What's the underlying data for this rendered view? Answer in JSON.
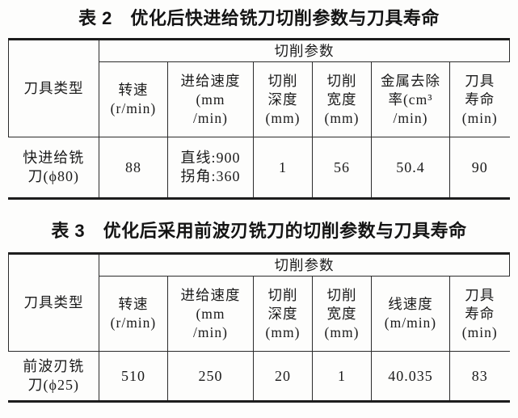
{
  "table2": {
    "title": "表 2　优化后快进给铣刀切削参数与刀具寿命",
    "corner": "刀具类型",
    "group": "切削参数",
    "headers": [
      [
        "转速",
        "(r/min)"
      ],
      [
        "进给速度",
        "(mm",
        "/min)"
      ],
      [
        "切削",
        "深度",
        "(mm)"
      ],
      [
        "切削",
        "宽度",
        "(mm)"
      ],
      [
        "金属去除",
        "率(cm³",
        "/min)"
      ],
      [
        "刀具",
        "寿命",
        "(min)"
      ]
    ],
    "row": {
      "tool": [
        "快进给铣",
        "刀(ϕ80)"
      ],
      "spindle_speed": [
        "88"
      ],
      "feed_rate": [
        "直线:900",
        "拐角:360"
      ],
      "cut_depth": [
        "1"
      ],
      "cut_width": [
        "56"
      ],
      "metal_removal_rate": [
        "50.4"
      ],
      "tool_life": [
        "90"
      ]
    }
  },
  "table3": {
    "title": "表 3　优化后采用前波刃铣刀的切削参数与刀具寿命",
    "corner": "刀具类型",
    "group": "切削参数",
    "headers": [
      [
        "转速",
        "(r/min)"
      ],
      [
        "进给速度",
        "(mm",
        "/min)"
      ],
      [
        "切削",
        "深度",
        "(mm)"
      ],
      [
        "切削",
        "宽度",
        "(mm)"
      ],
      [
        "线速度",
        "(m/min)"
      ],
      [
        "刀具",
        "寿命",
        "(min)"
      ]
    ],
    "row": {
      "tool": [
        "前波刃铣",
        "刀(ϕ25)"
      ],
      "spindle_speed": [
        "510"
      ],
      "feed_rate": [
        "250"
      ],
      "cut_depth": [
        "20"
      ],
      "cut_width": [
        "1"
      ],
      "linear_speed": [
        "40.035"
      ],
      "tool_life": [
        "83"
      ]
    }
  }
}
